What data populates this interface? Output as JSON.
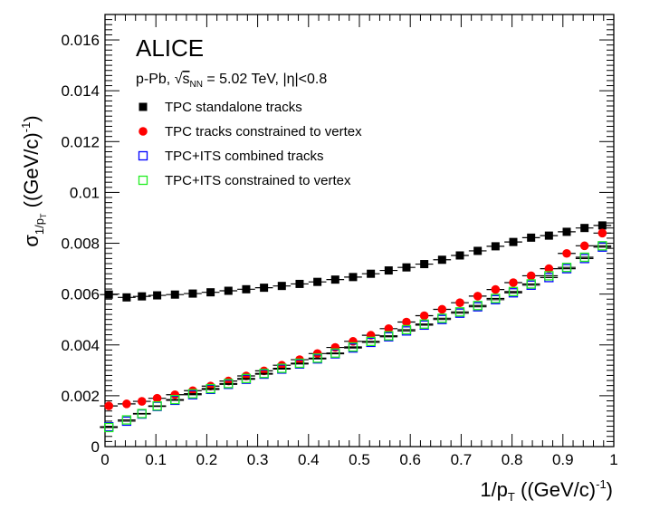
{
  "chart_data": {
    "type": "scatter",
    "collaboration": "ALICE",
    "system": {
      "prefix": "p-Pb, ",
      "sqrt": "√",
      "s": "s",
      "sub": "NN",
      "suffix": " = 5.02 TeV, |η|<0.8"
    },
    "xlabel": {
      "main": "1/p",
      "sub": "T",
      "units": " ((GeV/c)",
      "sup": "-1",
      "close": ")"
    },
    "ylabel": {
      "main": "σ",
      "sub": "1/p",
      "subsub": "T",
      "units": " ((GeV/c)",
      "sup": "-1",
      "close": ")"
    },
    "xlim": [
      0,
      1
    ],
    "ylim": [
      0,
      0.017
    ],
    "x_ticks": [
      "0",
      "0.1",
      "0.2",
      "0.3",
      "0.4",
      "0.5",
      "0.6",
      "0.7",
      "0.8",
      "0.9",
      "1"
    ],
    "y_ticks": [
      "0",
      "0.002",
      "0.004",
      "0.006",
      "0.008",
      "0.01",
      "0.012",
      "0.014",
      "0.016"
    ],
    "x": [
      0.0075,
      0.0425,
      0.0725,
      0.1025,
      0.1375,
      0.1725,
      0.2075,
      0.2425,
      0.2775,
      0.3125,
      0.3475,
      0.3825,
      0.4175,
      0.4525,
      0.4875,
      0.5225,
      0.5575,
      0.5925,
      0.6275,
      0.6625,
      0.6975,
      0.7325,
      0.7675,
      0.8025,
      0.8375,
      0.8725,
      0.9075,
      0.9425,
      0.9775
    ],
    "series": [
      {
        "name": "TPC standalone tracks",
        "marker": "filled-square",
        "color": "#000000",
        "y": [
          0.00598,
          0.00587,
          0.00591,
          0.00595,
          0.00598,
          0.00602,
          0.00607,
          0.00613,
          0.00619,
          0.00625,
          0.00632,
          0.0064,
          0.00648,
          0.00657,
          0.00667,
          0.0068,
          0.00693,
          0.00705,
          0.00718,
          0.00735,
          0.00752,
          0.0077,
          0.00788,
          0.00805,
          0.00822,
          0.0083,
          0.00845,
          0.0086,
          0.0087
        ]
      },
      {
        "name": "TPC tracks constrained to vertex",
        "marker": "filled-circle",
        "color": "#ff0000",
        "y": [
          0.0016,
          0.00168,
          0.00178,
          0.0019,
          0.00204,
          0.0022,
          0.00238,
          0.00258,
          0.00278,
          0.00298,
          0.0032,
          0.00342,
          0.00366,
          0.0039,
          0.00414,
          0.00438,
          0.00464,
          0.0049,
          0.00515,
          0.0054,
          0.00566,
          0.00592,
          0.00618,
          0.00645,
          0.00672,
          0.007,
          0.0076,
          0.0079,
          0.0084
        ]
      },
      {
        "name": "TPC+ITS combined tracks",
        "marker": "open-square",
        "color": "#0000ff",
        "y": [
          0.00078,
          0.001,
          0.00128,
          0.00158,
          0.00182,
          0.00204,
          0.00225,
          0.00245,
          0.00265,
          0.00285,
          0.00305,
          0.00325,
          0.00345,
          0.00365,
          0.00388,
          0.0041,
          0.00432,
          0.00455,
          0.00478,
          0.005,
          0.00525,
          0.0055,
          0.00578,
          0.00605,
          0.00635,
          0.00665,
          0.007,
          0.0074,
          0.00785
        ]
      },
      {
        "name": "TPC+ITS constrained to vertex",
        "marker": "open-square",
        "color": "#22ee22",
        "y": [
          0.00075,
          0.00105,
          0.0013,
          0.0016,
          0.00185,
          0.00208,
          0.00228,
          0.00248,
          0.00268,
          0.00288,
          0.00308,
          0.00328,
          0.00348,
          0.00368,
          0.00392,
          0.00414,
          0.00436,
          0.0046,
          0.00482,
          0.00505,
          0.0053,
          0.00555,
          0.00583,
          0.0061,
          0.0064,
          0.00672,
          0.00705,
          0.00745,
          0.0079
        ]
      }
    ],
    "legend_position": "top-left",
    "grid": false
  }
}
